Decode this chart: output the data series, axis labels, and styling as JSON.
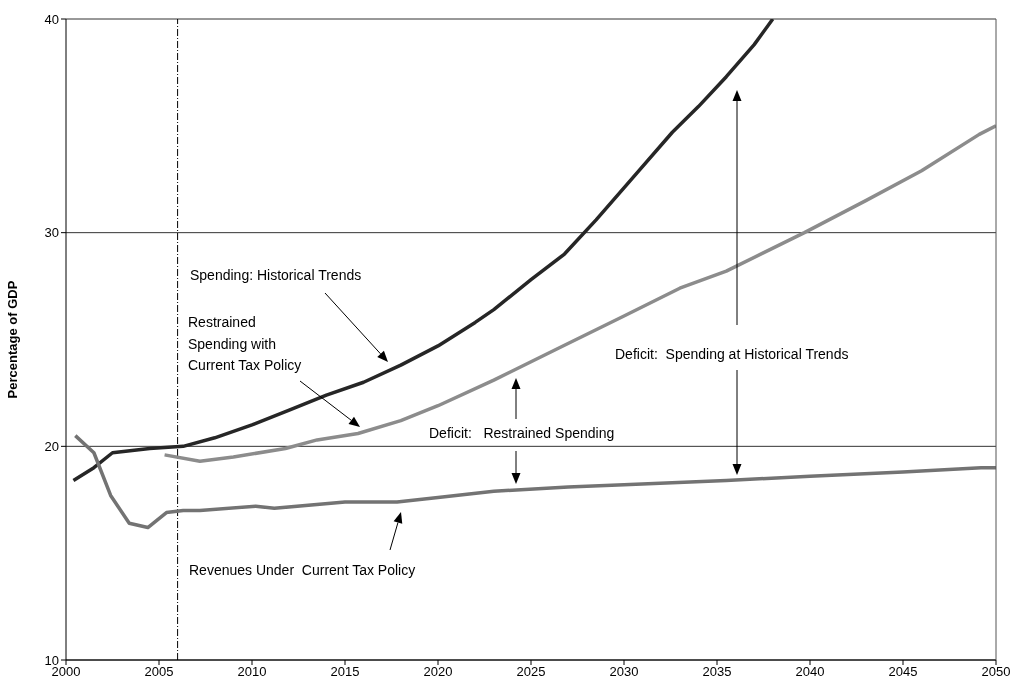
{
  "chart_data": {
    "type": "line",
    "ylabel": "Percentage of GDP",
    "xlim": [
      2000,
      2050
    ],
    "xticks": [
      2000,
      2005,
      2010,
      2015,
      2020,
      2025,
      2030,
      2035,
      2040,
      2045,
      2050
    ],
    "ylim": [
      10,
      40
    ],
    "yticks": [
      10,
      20,
      30,
      40
    ],
    "grid": "y",
    "marker": "none",
    "line_style": "solid",
    "series": [
      {
        "color": "#262626",
        "x": [
          2000.4,
          2001.5,
          2002.5,
          2004.5,
          2006.3,
          2008,
          2010,
          2012,
          2014,
          2016,
          2018,
          2020,
          2022,
          2023,
          2025,
          2026.8,
          2028.5,
          2030.7,
          2032.6,
          2034,
          2035.5,
          2037,
          2038
        ],
        "values": [
          18.4,
          19.0,
          19.7,
          19.9,
          20.0,
          20.4,
          21.0,
          21.7,
          22.4,
          23.0,
          23.8,
          24.7,
          25.8,
          26.4,
          27.8,
          29.0,
          30.6,
          32.8,
          34.7,
          35.9,
          37.3,
          38.8,
          40.0
        ]
      },
      {
        "color": "#8c8c8c",
        "x": [
          2005.3,
          2007.2,
          2009,
          2011.8,
          2013.5,
          2015.7,
          2018,
          2020,
          2023,
          2026.5,
          2030,
          2033,
          2035.5,
          2039.7,
          2043,
          2046,
          2049.1,
          2050
        ],
        "values": [
          19.6,
          19.3,
          19.5,
          19.9,
          20.3,
          20.6,
          21.2,
          21.9,
          23.1,
          24.6,
          26.1,
          27.4,
          28.2,
          30.0,
          31.5,
          32.9,
          34.6,
          35.0
        ]
      },
      {
        "color": "#737373",
        "x": [
          2000.5,
          2001.5,
          2002.4,
          2003.4,
          2004.4,
          2005.4,
          2006.3,
          2007.2,
          2010.2,
          2011.2,
          2015,
          2017.8,
          2020,
          2023,
          2027,
          2030,
          2035.5,
          2040,
          2045,
          2049.2,
          2050
        ],
        "values": [
          20.5,
          19.7,
          17.7,
          16.4,
          16.2,
          16.9,
          17.0,
          17.0,
          17.2,
          17.1,
          17.4,
          17.4,
          17.6,
          17.9,
          18.1,
          18.2,
          18.4,
          18.6,
          18.8,
          19.0,
          19.0
        ]
      }
    ],
    "ref_lines": [
      {
        "axis": "x",
        "value": 2006,
        "color": "#000000",
        "line_style": "dashed"
      }
    ],
    "annotations": [
      "Spending: Historical Trends",
      "Restrained\nSpending with\nCurrent Tax Policy",
      "Deficit:   Restrained Spending",
      "Deficit:  Spending at Historical Trends",
      "Revenues Under  Current Tax Policy"
    ]
  }
}
